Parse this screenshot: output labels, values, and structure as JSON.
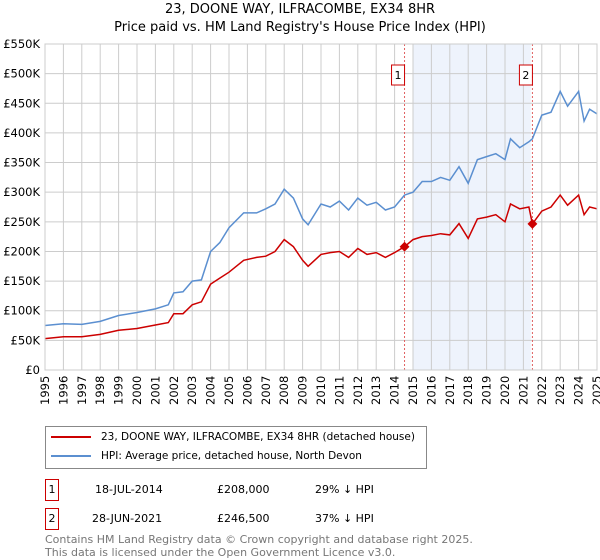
{
  "chart_data": {
    "type": "line",
    "title": "23, DOONE WAY, ILFRACOMBE, EX34 8HR",
    "subtitle": "Price paid vs. HM Land Registry's House Price Index (HPI)",
    "xlim": [
      1995,
      2025
    ],
    "ylim": [
      0,
      550000
    ],
    "y_ticks": [
      0,
      50000,
      100000,
      150000,
      200000,
      250000,
      300000,
      350000,
      400000,
      450000,
      500000,
      550000
    ],
    "y_tick_labels": [
      "£0",
      "£50K",
      "£100K",
      "£150K",
      "£200K",
      "£250K",
      "£300K",
      "£350K",
      "£400K",
      "£450K",
      "£500K",
      "£550K"
    ],
    "x_tick_labels": [
      "1995",
      "1996",
      "1997",
      "1998",
      "1999",
      "2000",
      "2001",
      "2002",
      "2003",
      "2004",
      "2005",
      "2006",
      "2007",
      "2008",
      "2009",
      "2010",
      "2011",
      "2012",
      "2013",
      "2014",
      "2015",
      "2016",
      "2017",
      "2018",
      "2019",
      "2020",
      "2021",
      "2022",
      "2023",
      "2024",
      "2025"
    ],
    "grid": true,
    "shaded_range": [
      2015.0,
      2021.4
    ],
    "series": [
      {
        "name": "23, DOONE WAY, ILFRACOMBE, EX34 8HR (detached house)",
        "color": "#cc0000",
        "x": [
          1995,
          1996,
          1997,
          1998,
          1999,
          2000,
          2001,
          2001.7,
          2002,
          2002.5,
          2003,
          2003.5,
          2004,
          2004.5,
          2005,
          2005.8,
          2006.5,
          2007,
          2007.5,
          2008,
          2008.5,
          2009,
          2009.3,
          2010,
          2010.5,
          2011,
          2011.5,
          2012,
          2012.5,
          2013,
          2013.5,
          2014,
          2014.54,
          2015,
          2015.5,
          2016,
          2016.5,
          2017,
          2017.5,
          2018,
          2018.5,
          2019,
          2019.5,
          2020,
          2020.3,
          2020.8,
          2021.3,
          2021.49,
          2022,
          2022.5,
          2023,
          2023.4,
          2024,
          2024.3,
          2024.6,
          2025
        ],
        "y": [
          53000,
          56000,
          56000,
          60000,
          67000,
          70000,
          76000,
          80000,
          95000,
          95000,
          110000,
          115000,
          145000,
          155000,
          165000,
          185000,
          190000,
          192000,
          200000,
          220000,
          208000,
          185000,
          175000,
          195000,
          198000,
          200000,
          190000,
          205000,
          195000,
          198000,
          190000,
          198000,
          208000,
          220000,
          225000,
          227000,
          230000,
          228000,
          247000,
          222000,
          255000,
          258000,
          262000,
          250000,
          280000,
          272000,
          275000,
          246500,
          268000,
          275000,
          295000,
          278000,
          295000,
          262000,
          275000,
          272000
        ]
      },
      {
        "name": "HPI: Average price, detached house, North Devon",
        "color": "#5b8fd0",
        "x": [
          1995,
          1996,
          1997,
          1998,
          1999,
          2000,
          2001,
          2001.7,
          2002,
          2002.5,
          2003,
          2003.5,
          2004,
          2004.5,
          2005,
          2005.8,
          2006.5,
          2007,
          2007.5,
          2008,
          2008.5,
          2009,
          2009.3,
          2010,
          2010.5,
          2011,
          2011.5,
          2012,
          2012.5,
          2013,
          2013.5,
          2014,
          2014.54,
          2015,
          2015.5,
          2016,
          2016.5,
          2017,
          2017.5,
          2018,
          2018.5,
          2019,
          2019.5,
          2020,
          2020.3,
          2020.8,
          2021.3,
          2021.49,
          2022,
          2022.5,
          2023,
          2023.4,
          2024,
          2024.3,
          2024.6,
          2025
        ],
        "y": [
          75000,
          78000,
          77000,
          82000,
          92000,
          97000,
          103000,
          110000,
          130000,
          132000,
          150000,
          152000,
          200000,
          215000,
          240000,
          265000,
          265000,
          272000,
          280000,
          305000,
          290000,
          255000,
          245000,
          280000,
          275000,
          285000,
          270000,
          290000,
          278000,
          283000,
          270000,
          275000,
          295000,
          300000,
          318000,
          318000,
          325000,
          320000,
          343000,
          315000,
          355000,
          360000,
          365000,
          355000,
          390000,
          375000,
          385000,
          390000,
          430000,
          435000,
          470000,
          445000,
          470000,
          420000,
          440000,
          432000
        ]
      }
    ],
    "sales": [
      {
        "label": "1",
        "x": 2014.54,
        "price": 208000,
        "date": "18-JUL-2014",
        "price_text": "£208,000",
        "hpi_text": "29% ↓ HPI"
      },
      {
        "label": "2",
        "x": 2021.49,
        "price": 246500,
        "date": "28-JUN-2021",
        "price_text": "£246,500",
        "hpi_text": "37% ↓ HPI"
      }
    ]
  },
  "footer": {
    "line1": "Contains HM Land Registry data © Crown copyright and database right 2025.",
    "line2": "This data is licensed under the Open Government Licence v3.0."
  }
}
